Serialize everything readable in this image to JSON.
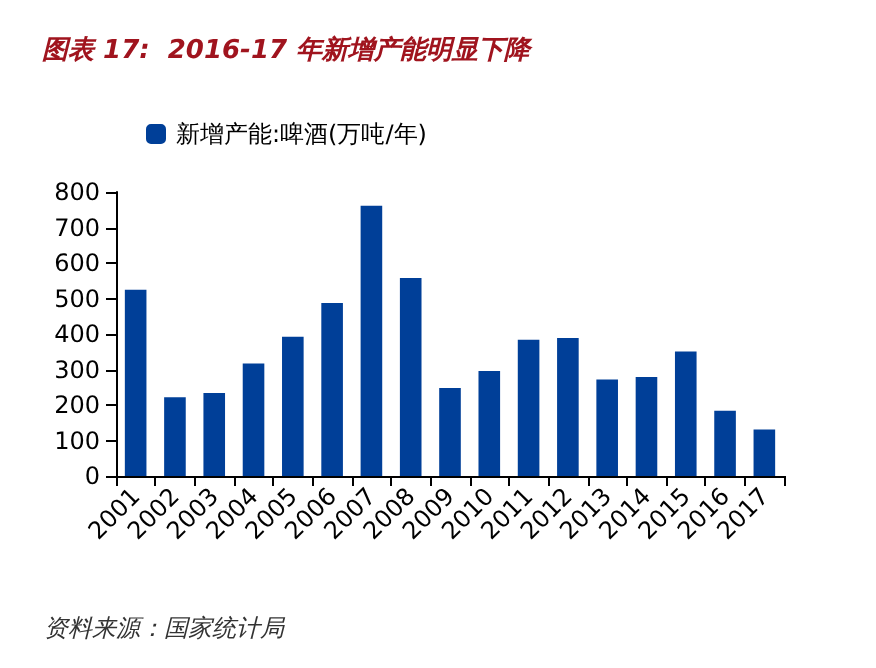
{
  "chart_data": {
    "type": "bar",
    "title": "图表 17:  2016-17 年新增产能明显下降",
    "categories": [
      "2001",
      "2002",
      "2003",
      "2004",
      "2005",
      "2006",
      "2007",
      "2008",
      "2009",
      "2010",
      "2011",
      "2012",
      "2013",
      "2014",
      "2015",
      "2016",
      "2017"
    ],
    "series": [
      {
        "name": "新增产能:啤酒(万吨/年)",
        "color": "#003f98",
        "values": [
          525,
          222,
          234,
          317,
          392,
          487,
          761,
          558,
          248,
          296,
          384,
          389,
          272,
          279,
          351,
          184,
          131
        ]
      }
    ],
    "ylim": [
      0,
      800
    ],
    "yticks": [
      0,
      100,
      200,
      300,
      400,
      500,
      600,
      700,
      800
    ],
    "grid": false,
    "legend": "top left",
    "annotations": [
      "资料来源：国家统计局"
    ]
  }
}
